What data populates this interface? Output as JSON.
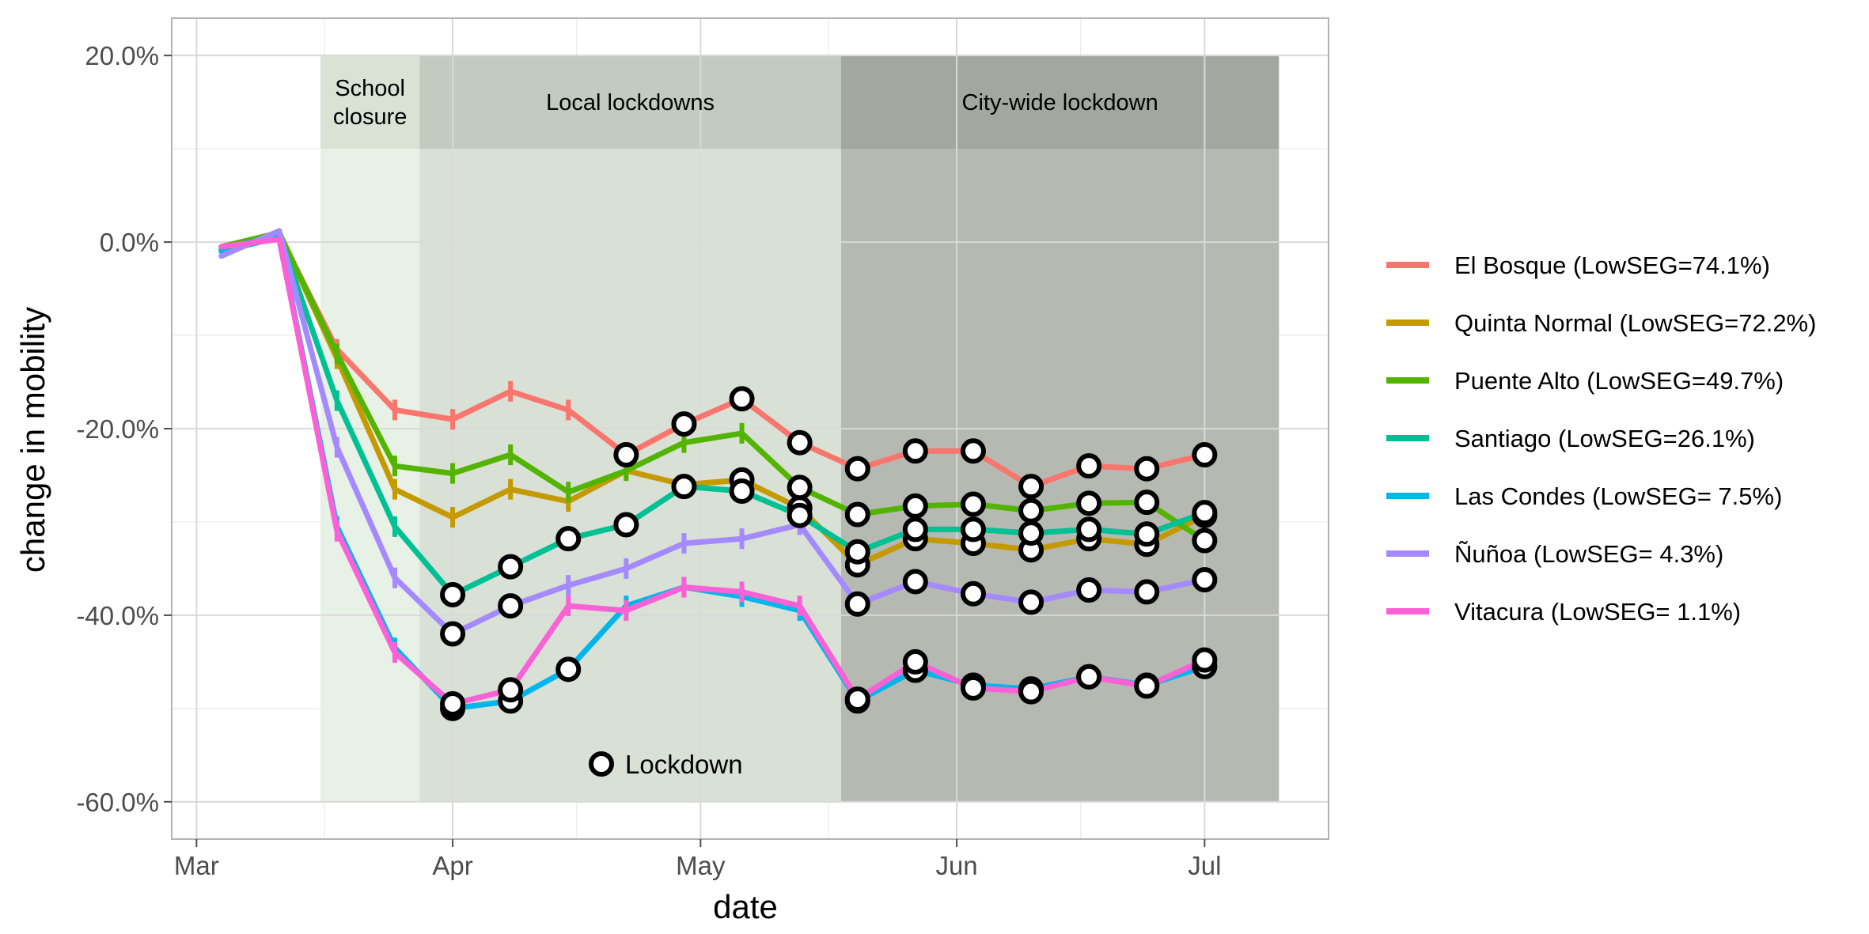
{
  "chart_data": {
    "type": "line",
    "title": "",
    "xlabel": "date",
    "ylabel": "change in mobility",
    "x_ticks": [
      "Mar",
      "Apr",
      "May",
      "Jun",
      "Jul"
    ],
    "x_tick_dates": [
      "2020-03-01",
      "2020-04-01",
      "2020-05-01",
      "2020-06-01",
      "2020-07-01"
    ],
    "y_ticks": [
      "20.0%",
      "0.0%",
      "-20.0%",
      "-40.0%",
      "-60.0%"
    ],
    "y_tick_values": [
      20,
      0,
      -20,
      -40,
      -60
    ],
    "xlim": [
      "2020-02-27",
      "2020-07-16"
    ],
    "ylim": [
      -64,
      24
    ],
    "grid": true,
    "legend_position": "right",
    "x": [
      "2020-03-04",
      "2020-03-11",
      "2020-03-18",
      "2020-03-25",
      "2020-04-01",
      "2020-04-08",
      "2020-04-15",
      "2020-04-22",
      "2020-04-29",
      "2020-05-06",
      "2020-05-13",
      "2020-05-20",
      "2020-05-27",
      "2020-06-03",
      "2020-06-10",
      "2020-06-17",
      "2020-06-24",
      "2020-07-01"
    ],
    "periods": [
      {
        "label_lines": [
          "School",
          "closure"
        ],
        "start": "2020-03-16",
        "end": "2020-03-28",
        "color": "#e8f1e6"
      },
      {
        "label_lines": [
          "Local lockdowns"
        ],
        "start": "2020-03-28",
        "end": "2020-05-18",
        "color": "#d9e0d6"
      },
      {
        "label_lines": [
          "City-wide lockdown"
        ],
        "start": "2020-05-18",
        "end": "2020-07-10",
        "color": "#b5b9b2"
      }
    ],
    "period_label_band": [
      10,
      20
    ],
    "lockdown_legend": "Lockdown",
    "series": [
      {
        "name": "El Bosque (LowSEG=74.1%)",
        "color": "#F8766D",
        "values": [
          -0.5,
          0.8,
          -11.5,
          -18.0,
          -19.0,
          -16.0,
          -18.0,
          -22.8,
          -19.5,
          -16.8,
          -21.5,
          -24.3,
          -22.4,
          -22.4,
          -26.2,
          -24.0,
          -24.3,
          -22.8
        ],
        "lockdown": [
          false,
          false,
          false,
          false,
          false,
          false,
          false,
          true,
          true,
          true,
          true,
          true,
          true,
          true,
          true,
          true,
          true,
          true
        ]
      },
      {
        "name": "Quinta Normal (LowSEG=72.2%)",
        "color": "#C49A00",
        "values": [
          -0.5,
          1.0,
          -12.5,
          -26.5,
          -29.5,
          -26.5,
          -27.8,
          -24.5,
          -26.0,
          -25.5,
          -28.5,
          -34.6,
          -31.8,
          -32.3,
          -33.0,
          -31.8,
          -32.4,
          -29.3
        ],
        "lockdown": [
          false,
          false,
          false,
          false,
          false,
          false,
          false,
          false,
          false,
          true,
          true,
          true,
          true,
          true,
          true,
          true,
          true,
          true
        ]
      },
      {
        "name": "Puente Alto (LowSEG=49.7%)",
        "color": "#53B400",
        "values": [
          -0.5,
          1.0,
          -12.0,
          -24.0,
          -24.8,
          -22.8,
          -26.8,
          -24.5,
          -21.5,
          -20.5,
          -26.3,
          -29.2,
          -28.3,
          -28.1,
          -28.8,
          -28.0,
          -27.9,
          -32.0
        ],
        "lockdown": [
          false,
          false,
          false,
          false,
          false,
          false,
          false,
          false,
          false,
          false,
          true,
          true,
          true,
          true,
          true,
          true,
          true,
          true
        ]
      },
      {
        "name": "Santiago (LowSEG=26.1%)",
        "color": "#00C094",
        "values": [
          -0.8,
          0.8,
          -17.0,
          -30.5,
          -37.8,
          -34.8,
          -31.8,
          -30.3,
          -26.2,
          -26.7,
          -29.3,
          -33.2,
          -30.8,
          -30.8,
          -31.2,
          -30.8,
          -31.3,
          -29.0
        ],
        "lockdown": [
          false,
          false,
          false,
          false,
          true,
          true,
          true,
          true,
          true,
          true,
          true,
          true,
          true,
          true,
          true,
          true,
          true,
          true
        ]
      },
      {
        "name": "Las Condes (LowSEG= 7.5%)",
        "color": "#00B6EB",
        "values": [
          -1.0,
          0.5,
          -30.5,
          -43.5,
          -50.0,
          -49.2,
          -45.8,
          -39.0,
          -37.0,
          -38.0,
          -39.5,
          -49.2,
          -45.9,
          -47.5,
          -47.9,
          -46.6,
          -47.5,
          -45.5
        ],
        "lockdown": [
          false,
          false,
          false,
          false,
          true,
          true,
          true,
          false,
          false,
          false,
          false,
          true,
          true,
          true,
          true,
          true,
          true,
          true
        ]
      },
      {
        "name": "Ñuñoa (LowSEG= 4.3%)",
        "color": "#A58AFF",
        "values": [
          -1.5,
          1.2,
          -22.0,
          -36.0,
          -42.0,
          -39.0,
          -36.8,
          -35.0,
          -32.3,
          -31.8,
          -30.3,
          -38.8,
          -36.4,
          -37.7,
          -38.6,
          -37.3,
          -37.5,
          -36.2
        ],
        "lockdown": [
          false,
          false,
          false,
          false,
          true,
          true,
          false,
          false,
          false,
          false,
          false,
          true,
          true,
          true,
          true,
          true,
          true,
          true
        ]
      },
      {
        "name": "Vitacura (LowSEG= 1.1%)",
        "color": "#FB61D7",
        "values": [
          -0.5,
          0.3,
          -31.0,
          -44.0,
          -49.5,
          -48.0,
          -39.0,
          -39.5,
          -37.0,
          -37.5,
          -39.0,
          -49.0,
          -45.0,
          -47.8,
          -48.2,
          -46.6,
          -47.6,
          -44.8
        ],
        "lockdown": [
          false,
          false,
          false,
          false,
          true,
          true,
          false,
          false,
          false,
          false,
          false,
          true,
          true,
          true,
          true,
          true,
          true,
          true
        ]
      }
    ]
  }
}
